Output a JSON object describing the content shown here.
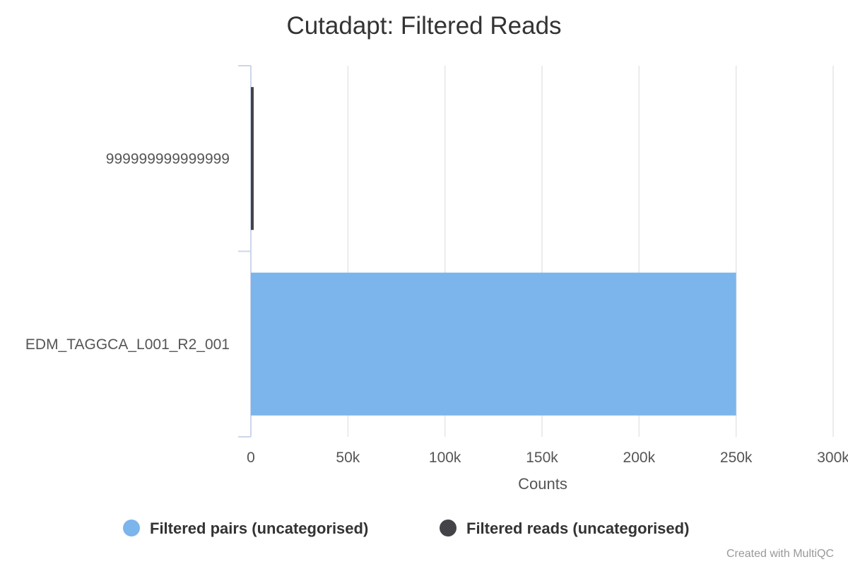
{
  "chart_data": {
    "type": "bar",
    "orientation": "horizontal",
    "stacked": true,
    "title": "Cutadapt: Filtered Reads",
    "xlabel": "Counts",
    "ylabel": "",
    "xlim": [
      0,
      300000
    ],
    "x_ticks": [
      0,
      50000,
      100000,
      150000,
      200000,
      250000,
      300000
    ],
    "x_tick_labels": [
      "0",
      "50k",
      "100k",
      "150k",
      "200k",
      "250k",
      "300k"
    ],
    "categories": [
      "999999999999999",
      "EDM_TAGGCA_L001_R2_001"
    ],
    "series": [
      {
        "name": "Filtered pairs (uncategorised)",
        "color": "#7cb5ec",
        "values": [
          0,
          250000
        ]
      },
      {
        "name": "Filtered reads (uncategorised)",
        "color": "#434348",
        "values": [
          1000,
          0
        ]
      }
    ],
    "grid": true,
    "legend_position": "bottom-center"
  },
  "credit": "Created with MultiQC"
}
